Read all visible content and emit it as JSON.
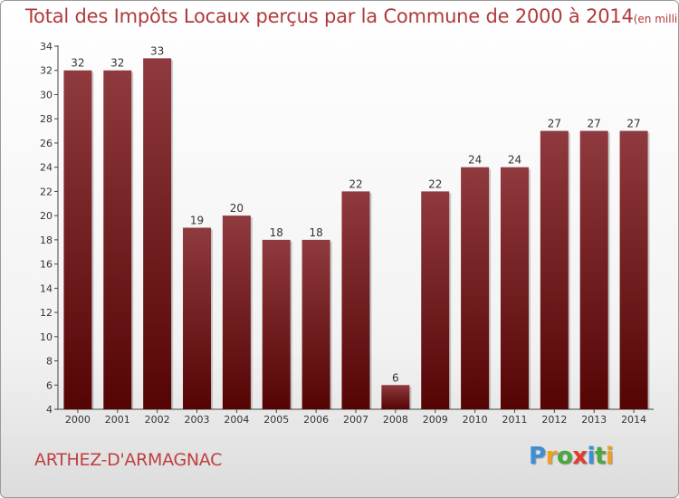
{
  "title": "Total des Impôts Locaux perçus par la Commune de 2000 à 2014",
  "title_unit": "(en milliers d'€)",
  "commune": "ARTHEZ-D'ARMAGNAC",
  "logo": {
    "letters": [
      "P",
      "r",
      "o",
      "x",
      "i",
      "t",
      "i"
    ],
    "colors": [
      "#3b8fd6",
      "#f0a020",
      "#4aa83f",
      "#e33a2d",
      "#3b8fd6",
      "#4aa83f",
      "#f0a020"
    ]
  },
  "colors": {
    "bar_top": "#8f3a3e",
    "bar_bottom": "#550404",
    "title": "#b03a3a"
  },
  "chart_data": {
    "type": "bar",
    "title": "Total des Impôts Locaux perçus par la Commune de 2000 à 2014",
    "xlabel": "",
    "ylabel": "",
    "categories": [
      "2000",
      "2001",
      "2002",
      "2003",
      "2004",
      "2005",
      "2006",
      "2007",
      "2008",
      "2009",
      "2010",
      "2011",
      "2012",
      "2013",
      "2014"
    ],
    "values": [
      32,
      32,
      33,
      19,
      20,
      18,
      18,
      22,
      6,
      22,
      24,
      24,
      27,
      27,
      27
    ],
    "ylim": [
      4,
      34
    ],
    "yticks": [
      4,
      6,
      8,
      10,
      12,
      14,
      16,
      18,
      20,
      22,
      24,
      26,
      28,
      30,
      32,
      34
    ],
    "grid": false,
    "data_labels": true
  }
}
